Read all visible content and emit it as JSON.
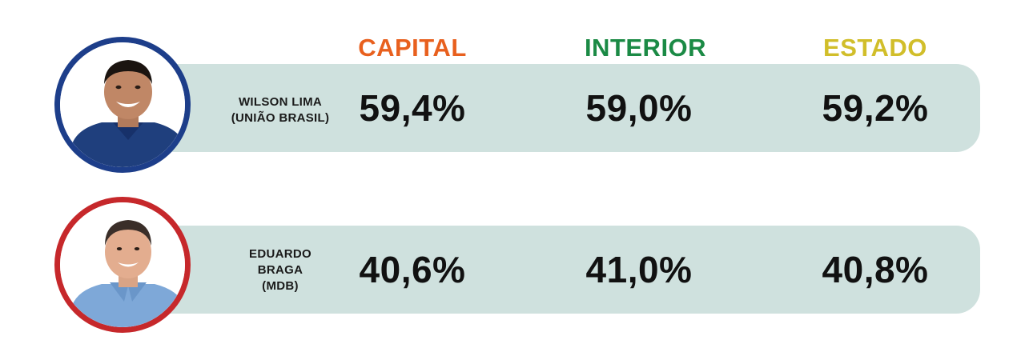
{
  "chart_data": {
    "type": "table",
    "categories": [
      "CAPITAL",
      "INTERIOR",
      "ESTADO"
    ],
    "category_colors": [
      "#e8601e",
      "#1b8a45",
      "#d1be2a"
    ],
    "series": [
      {
        "name": "WILSON LIMA (UNIÃO BRASIL)",
        "name_lines": [
          "WILSON LIMA",
          "(UNIÃO BRASIL)"
        ],
        "ring_color": "#1d3e8a",
        "values": [
          59.4,
          59.0,
          59.2
        ],
        "labels": [
          "59,4%",
          "59,0%",
          "59,2%"
        ]
      },
      {
        "name": "EDUARDO BRAGA (MDB)",
        "name_lines": [
          "EDUARDO",
          "BRAGA",
          "(MDB)"
        ],
        "ring_color": "#c6282b",
        "values": [
          40.6,
          41.0,
          40.8
        ],
        "labels": [
          "40,6%",
          "41,0%",
          "40,8%"
        ]
      }
    ],
    "band_color": "#cfe1de"
  }
}
